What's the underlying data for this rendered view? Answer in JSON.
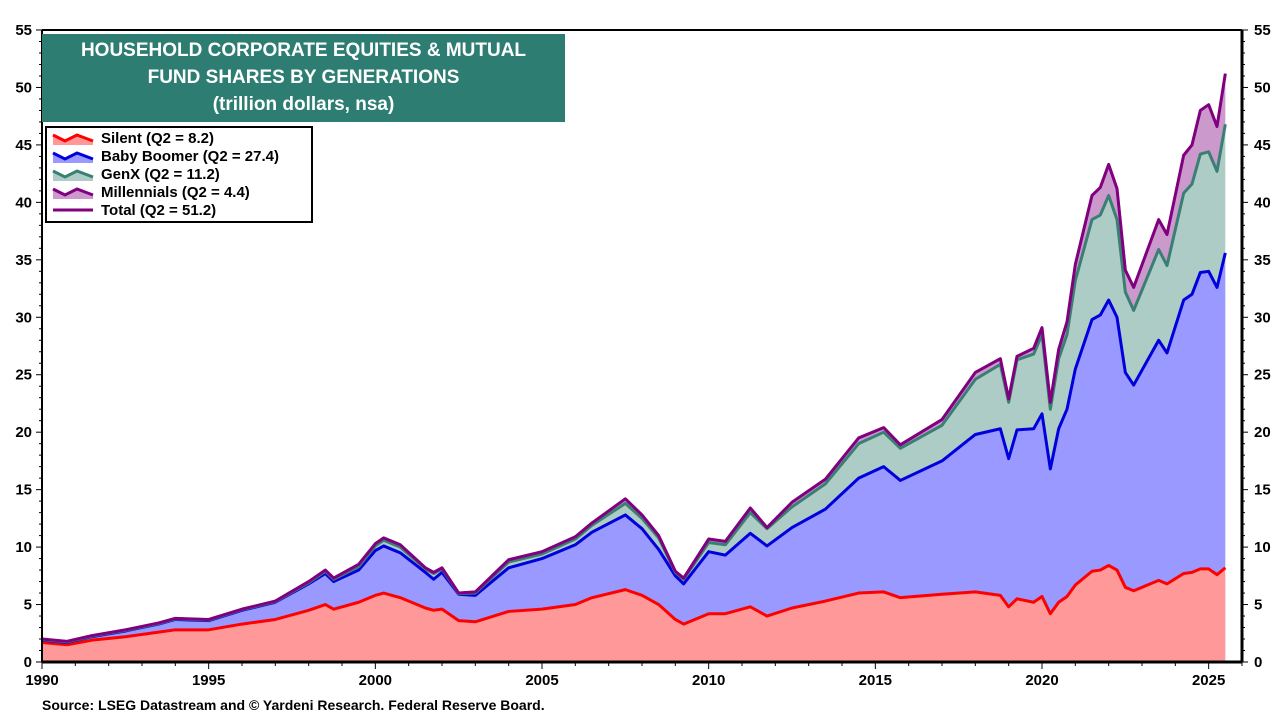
{
  "chart_data": {
    "type": "area",
    "stacked": true,
    "title_lines": [
      "HOUSEHOLD CORPORATE EQUITIES & MUTUAL",
      "FUND SHARES BY GENERATIONS",
      "(trillion dollars, nsa)"
    ],
    "source": "Source: LSEG Datastream and © Yardeni Research. Federal Reserve Board.",
    "xlim": [
      1990,
      2026
    ],
    "ylim": [
      0,
      55
    ],
    "x_ticks": [
      "1990",
      "1995",
      "2000",
      "2005",
      "2010",
      "2015",
      "2020",
      "2025"
    ],
    "y_ticks": [
      "0",
      "5",
      "10",
      "15",
      "20",
      "25",
      "30",
      "35",
      "40",
      "45",
      "50",
      "55"
    ],
    "grid": false,
    "legend_placement": "top-left",
    "x": [
      1990.0,
      1990.75,
      1991.5,
      1992.5,
      1993.5,
      1994.0,
      1995.0,
      1996.0,
      1997.0,
      1998.0,
      1998.5,
      1998.75,
      1999.5,
      2000.0,
      2000.25,
      2000.75,
      2001.5,
      2001.75,
      2002.0,
      2002.5,
      2003.0,
      2004.0,
      2005.0,
      2006.0,
      2006.5,
      2007.5,
      2008.0,
      2008.5,
      2009.0,
      2009.25,
      2010.0,
      2010.5,
      2011.25,
      2011.75,
      2012.5,
      2013.5,
      2014.5,
      2015.25,
      2015.75,
      2017.0,
      2018.0,
      2018.75,
      2019.0,
      2019.25,
      2019.75,
      2020.0,
      2020.25,
      2020.5,
      2020.75,
      2021.0,
      2021.5,
      2021.75,
      2022.0,
      2022.25,
      2022.5,
      2022.75,
      2023.5,
      2023.75,
      2024.25,
      2024.5,
      2024.75,
      2025.0,
      2025.25,
      2025.5
    ],
    "series": [
      {
        "name": "Silent (Q2 = 8.2)",
        "fill": "#ff9999",
        "line": "#ff0000",
        "values": [
          1.7,
          1.5,
          1.9,
          2.2,
          2.6,
          2.8,
          2.8,
          3.3,
          3.7,
          4.5,
          5.0,
          4.6,
          5.2,
          5.8,
          6.0,
          5.6,
          4.7,
          4.5,
          4.6,
          3.6,
          3.5,
          4.4,
          4.6,
          5.0,
          5.6,
          6.3,
          5.8,
          5.0,
          3.7,
          3.3,
          4.2,
          4.2,
          4.8,
          4.0,
          4.7,
          5.3,
          6.0,
          6.1,
          5.6,
          5.9,
          6.1,
          5.8,
          4.8,
          5.5,
          5.2,
          5.7,
          4.2,
          5.2,
          5.7,
          6.7,
          7.9,
          8.0,
          8.4,
          8.0,
          6.5,
          6.2,
          7.1,
          6.8,
          7.7,
          7.8,
          8.1,
          8.1,
          7.6,
          8.2
        ]
      },
      {
        "name": "Baby Boomer (Q2 = 27.4)",
        "fill": "#9999ff",
        "line": "#0000dd",
        "values": [
          0.2,
          0.2,
          0.3,
          0.5,
          0.7,
          0.9,
          0.8,
          1.2,
          1.5,
          2.3,
          2.7,
          2.4,
          2.8,
          3.9,
          4.1,
          3.9,
          3.1,
          2.7,
          3.2,
          2.3,
          2.3,
          3.8,
          4.4,
          5.2,
          5.7,
          6.5,
          5.8,
          4.8,
          3.8,
          3.5,
          5.4,
          5.1,
          6.4,
          6.1,
          7.0,
          8.0,
          10.0,
          10.9,
          10.2,
          11.6,
          13.7,
          14.5,
          12.9,
          14.7,
          15.1,
          15.9,
          12.6,
          15.1,
          16.3,
          18.8,
          21.9,
          22.2,
          23.1,
          22.0,
          18.7,
          17.9,
          20.9,
          20.1,
          23.8,
          24.2,
          25.8,
          25.9,
          25.0,
          27.4
        ]
      },
      {
        "name": "GenX (Q2 = 11.2)",
        "fill": "#aeccc6",
        "line": "#3a7f73",
        "values": [
          0.05,
          0.05,
          0.05,
          0.05,
          0.05,
          0.05,
          0.05,
          0.05,
          0.05,
          0.1,
          0.2,
          0.2,
          0.3,
          0.4,
          0.5,
          0.5,
          0.3,
          0.5,
          0.3,
          0.05,
          0.2,
          0.5,
          0.4,
          0.5,
          0.6,
          1.0,
          0.9,
          1.0,
          0.3,
          0.4,
          0.8,
          0.9,
          1.8,
          1.5,
          1.8,
          2.2,
          3.0,
          3.0,
          2.8,
          3.1,
          4.8,
          5.6,
          4.9,
          6.1,
          6.5,
          6.9,
          5.2,
          6.1,
          6.5,
          7.7,
          8.7,
          8.7,
          9.1,
          8.5,
          7.0,
          6.5,
          7.9,
          7.6,
          9.3,
          9.6,
          10.3,
          10.4,
          10.1,
          11.2
        ]
      },
      {
        "name": "Millennials (Q2 = 4.4)",
        "fill": "#cc99cc",
        "line": "#800080",
        "values": [
          0.05,
          0.05,
          0.05,
          0.05,
          0.05,
          0.05,
          0.05,
          0.05,
          0.05,
          0.1,
          0.1,
          0.1,
          0.2,
          0.2,
          0.2,
          0.2,
          0.1,
          0.1,
          0.1,
          0.05,
          0.1,
          0.2,
          0.2,
          0.2,
          0.2,
          0.4,
          0.3,
          0.2,
          0.1,
          0.1,
          0.3,
          0.3,
          0.4,
          0.1,
          0.4,
          0.4,
          0.5,
          0.4,
          0.3,
          0.5,
          0.6,
          0.5,
          0.3,
          0.3,
          0.5,
          0.6,
          0.6,
          0.8,
          1.1,
          1.4,
          2.1,
          2.4,
          2.7,
          2.7,
          1.9,
          2.0,
          2.6,
          2.7,
          3.3,
          3.4,
          3.8,
          4.1,
          3.9,
          4.4
        ]
      }
    ],
    "total": {
      "name": "Total (Q2 = 51.2)",
      "line": "#800080"
    }
  }
}
